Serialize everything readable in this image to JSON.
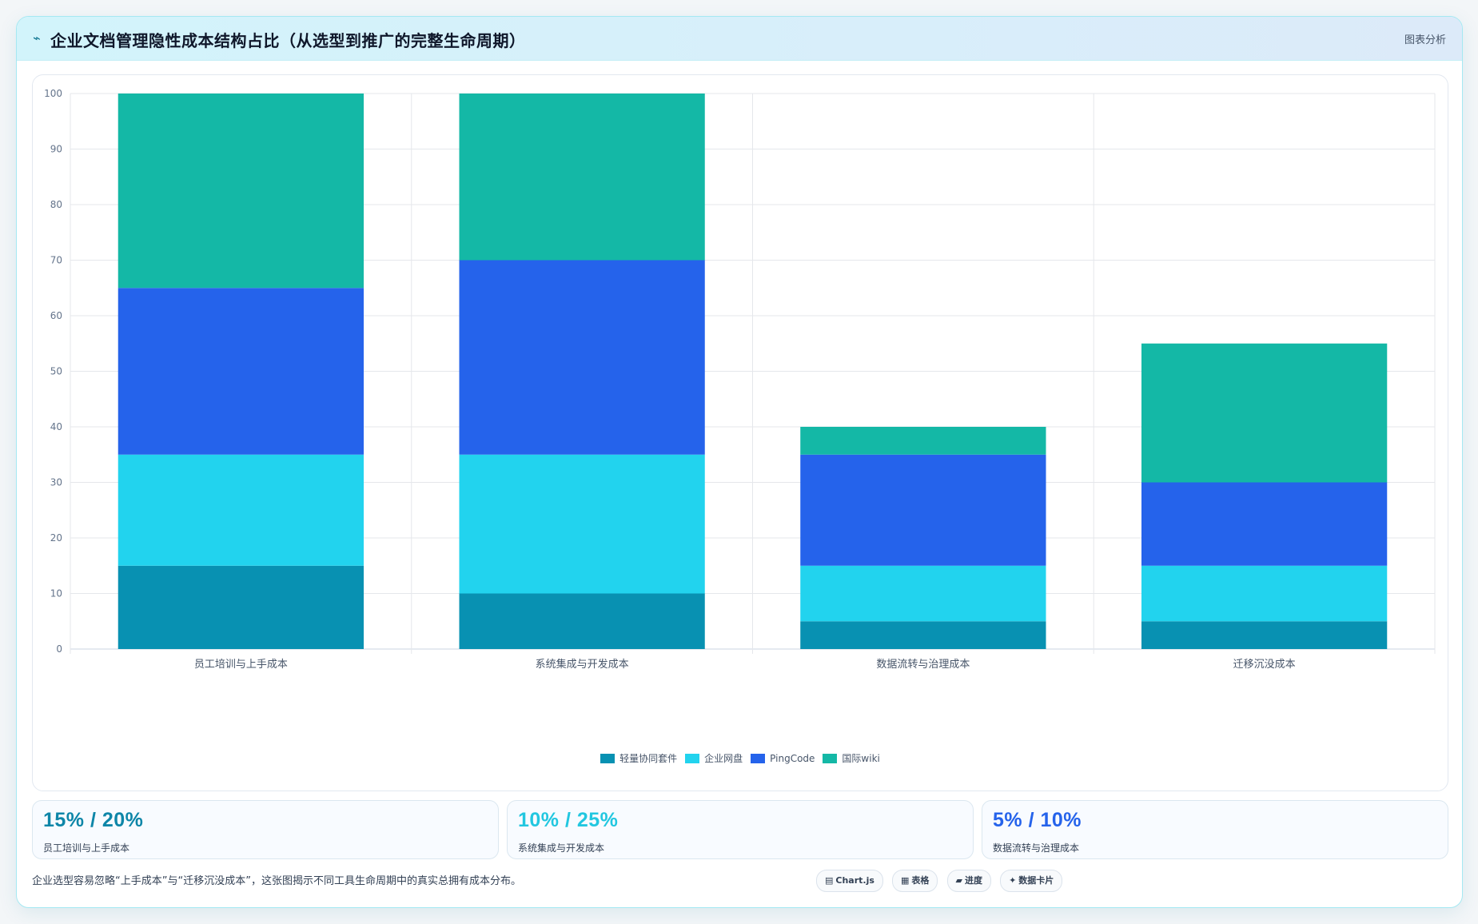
{
  "header": {
    "icon": "chart-line-icon",
    "title": "企业文档管理隐性成本结构占比（从选型到推广的完整生命周期）",
    "tag": "图表分析"
  },
  "chart_data": {
    "type": "bar",
    "stacked": true,
    "categories": [
      "员工培训与上手成本",
      "系统集成与开发成本",
      "数据流转与治理成本",
      "迁移沉没成本"
    ],
    "series": [
      {
        "name": "轻量协同套件",
        "color": "#0891b2",
        "values": [
          15,
          10,
          5,
          5
        ]
      },
      {
        "name": "企业网盘",
        "color": "#22d3ee",
        "values": [
          20,
          25,
          10,
          10
        ]
      },
      {
        "name": "PingCode",
        "color": "#2563eb",
        "values": [
          30,
          35,
          20,
          15
        ]
      },
      {
        "name": "国际wiki",
        "color": "#14b8a6",
        "values": [
          35,
          30,
          5,
          25
        ]
      }
    ],
    "ylim": [
      0,
      100
    ],
    "yticks": [
      0,
      10,
      20,
      30,
      40,
      50,
      60,
      70,
      80,
      90,
      100
    ],
    "grid": true,
    "legend_position": "bottom-center"
  },
  "kpis": [
    {
      "value": "15% / 20%",
      "label": "员工培训与上手成本",
      "color": "#0e86a8"
    },
    {
      "value": "10% / 25%",
      "label": "系统集成与开发成本",
      "color": "#22c7e0"
    },
    {
      "value": "5% / 10%",
      "label": "数据流转与治理成本",
      "color": "#2563eb"
    }
  ],
  "footnote": "企业选型容易忽略“上手成本”与“迁移沉没成本”，这张图揭示不同工具生命周期中的真实总拥有成本分布。",
  "badges": [
    {
      "icon": "▤",
      "label": "Chart.js"
    },
    {
      "icon": "▦",
      "label": "表格"
    },
    {
      "icon": "▰",
      "label": "进度"
    },
    {
      "icon": "✦",
      "label": "数据卡片"
    }
  ]
}
